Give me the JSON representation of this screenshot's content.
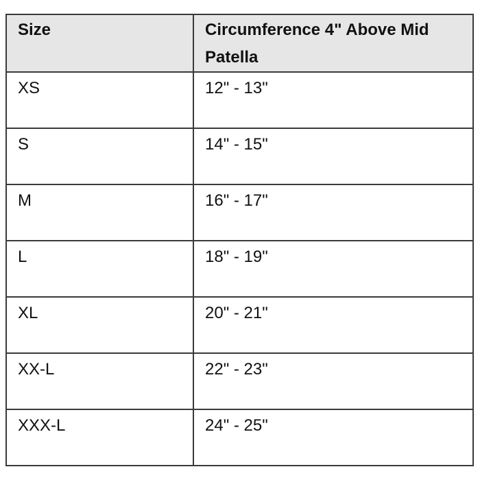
{
  "table": {
    "headers": [
      "Size",
      "Circumference 4\" Above Mid Patella"
    ],
    "rows": [
      [
        "XS",
        "12\" - 13\""
      ],
      [
        "S",
        "14\" - 15\""
      ],
      [
        "M",
        "16\" - 17\""
      ],
      [
        "L",
        "18\" - 19\""
      ],
      [
        "XL",
        "20\" - 21\""
      ],
      [
        "XX-L",
        "22\" - 23\""
      ],
      [
        "XXX-L",
        "24\" - 25\""
      ]
    ]
  },
  "colors": {
    "header_bg": "#e6e6e6",
    "border": "#3a3a3a"
  }
}
